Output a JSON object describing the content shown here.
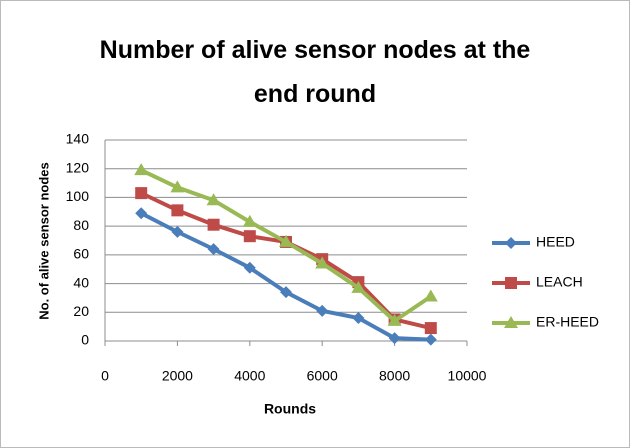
{
  "chart_data": {
    "type": "line",
    "title": "Number of alive sensor nodes at the end round",
    "xlabel": "Rounds",
    "ylabel": "No. of alive sensor nodes",
    "x": [
      1000,
      2000,
      3000,
      4000,
      5000,
      6000,
      7000,
      8000,
      9000
    ],
    "series": [
      {
        "name": "HEED",
        "color": "#4a7ebb",
        "marker": "diamond",
        "values": [
          89,
          76,
          64,
          51,
          34,
          21,
          16,
          2,
          1
        ]
      },
      {
        "name": "LEACH",
        "color": "#be4b48",
        "marker": "square",
        "values": [
          103,
          91,
          81,
          73,
          69,
          57,
          41,
          15,
          9
        ]
      },
      {
        "name": "ER-HEED",
        "color": "#98b954",
        "marker": "triangle",
        "values": [
          119,
          107,
          98,
          83,
          69,
          54,
          37,
          14,
          31
        ]
      }
    ],
    "xlim": [
      0,
      10000
    ],
    "xticks": [
      0,
      2000,
      4000,
      6000,
      8000,
      10000
    ],
    "ylim": [
      0,
      140
    ],
    "yticks": [
      0,
      20,
      40,
      60,
      80,
      100,
      120,
      140
    ],
    "grid": true,
    "legend": "right"
  }
}
